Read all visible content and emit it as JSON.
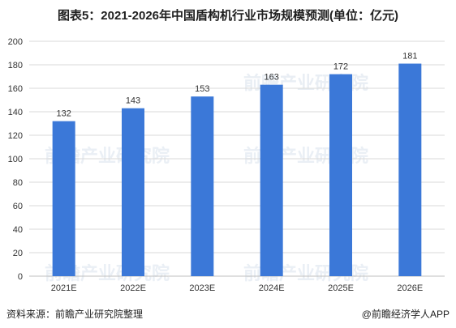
{
  "title": "图表5：2021-2026年中国盾构机行业市场规模预测(单位：亿元)",
  "watermark": "前瞻产业研究院",
  "source": "资料来源：前瞻产业研究院整理",
  "credit": "@前瞻经济学人APP",
  "chart_data": {
    "type": "bar",
    "title": "图表5：2021-2026年中国盾构机行业市场规模预测(单位：亿元)",
    "categories": [
      "2021E",
      "2022E",
      "2023E",
      "2024E",
      "2025E",
      "2026E"
    ],
    "values": [
      132,
      143,
      153,
      163,
      172,
      181
    ],
    "yticks": [
      0,
      20,
      40,
      60,
      80,
      100,
      120,
      140,
      160,
      180,
      200
    ],
    "ylim": [
      0,
      200
    ],
    "xlabel": "",
    "ylabel": "",
    "grid": true,
    "legend": "none",
    "bar_color": "#3b78d8"
  }
}
